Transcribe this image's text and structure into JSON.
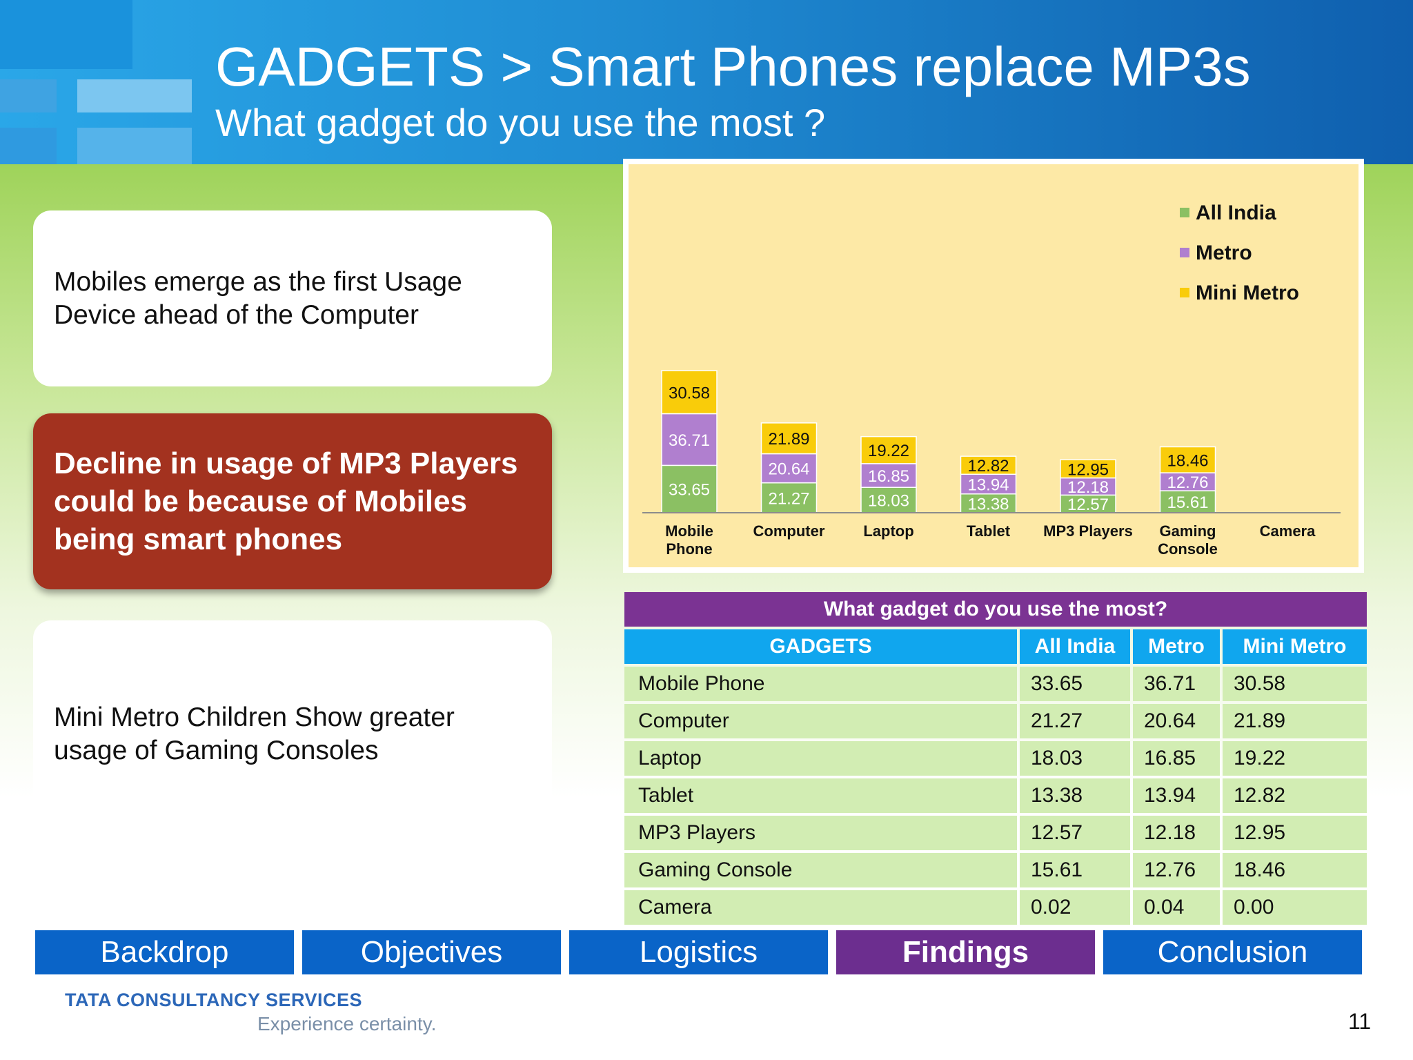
{
  "slide": {
    "title": "GADGETS > Smart Phones replace MP3s",
    "subtitle": "What gadget do you use the most ?",
    "page_number": "11"
  },
  "boxes": {
    "box1": "Mobiles emerge as the first Usage Device ahead of the Computer",
    "box2": "Decline in usage of MP3 Players could be because of Mobiles being smart phones",
    "box3": "Mini Metro Children Show greater usage of Gaming Consoles"
  },
  "chart_data": {
    "type": "bar",
    "stacked": true,
    "categories": [
      "Mobile\nPhone",
      "Computer",
      "Laptop",
      "Tablet",
      "MP3 Players",
      "Gaming\nConsole",
      "Camera"
    ],
    "series": [
      {
        "name": "All India",
        "color": "#8bc063",
        "values": [
          33.65,
          21.27,
          18.03,
          13.38,
          12.57,
          15.61,
          0.02
        ]
      },
      {
        "name": "Metro",
        "color": "#b07fcf",
        "values": [
          36.71,
          20.64,
          16.85,
          13.94,
          12.18,
          12.76,
          0.04
        ]
      },
      {
        "name": "Mini Metro",
        "color": "#f9cc0a",
        "values": [
          30.58,
          21.89,
          19.22,
          12.82,
          12.95,
          18.46,
          0.0
        ]
      }
    ],
    "data_labels": [
      [
        "33.65",
        "21.27",
        "18.03",
        "13.38",
        "12.57",
        "15.61",
        ""
      ],
      [
        "36.71",
        "20.64",
        "16.85",
        "13.94",
        "12.18",
        "12.76",
        ""
      ],
      [
        "30.58",
        "21.89",
        "19.22",
        "12.82",
        "12.95",
        "18.46",
        ""
      ]
    ],
    "legend_position": "top-right",
    "ylim": [
      0,
      110
    ],
    "grid": false
  },
  "table": {
    "title": "What gadget do you use the most?",
    "headers": [
      "GADGETS",
      "All India",
      "Metro",
      "Mini Metro"
    ],
    "rows": [
      [
        "Mobile Phone",
        "33.65",
        "36.71",
        "30.58"
      ],
      [
        "Computer",
        "21.27",
        "20.64",
        "21.89"
      ],
      [
        "Laptop",
        "18.03",
        "16.85",
        "19.22"
      ],
      [
        "Tablet",
        "13.38",
        "13.94",
        "12.82"
      ],
      [
        "MP3 Players",
        "12.57",
        "12.18",
        "12.95"
      ],
      [
        "Gaming Console",
        "15.61",
        "12.76",
        "18.46"
      ],
      [
        "Camera",
        "0.02",
        "0.04",
        "0.00"
      ]
    ]
  },
  "nav": {
    "items": [
      "Backdrop",
      "Objectives",
      "Logistics",
      "Findings",
      "Conclusion"
    ],
    "active": "Findings"
  },
  "footer": {
    "logo_main": "TATA CONSULTANCY SERVICES",
    "logo_sub": "Experience certainty."
  }
}
